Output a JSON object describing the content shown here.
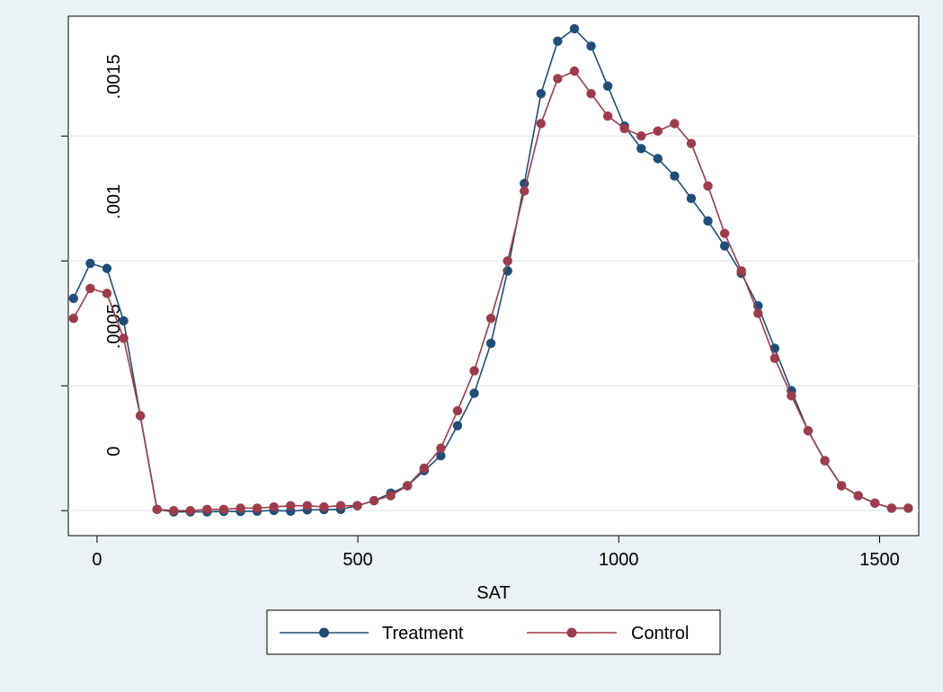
{
  "chart_data": {
    "type": "line",
    "title": "",
    "xlabel": "SAT",
    "ylabel": "",
    "xlim": [
      -55,
      1575
    ],
    "ylim": [
      -0.0001,
      0.00198
    ],
    "xticks": [
      0,
      500,
      1000,
      1500
    ],
    "yticks": [
      0,
      0.0005,
      0.001,
      0.0015
    ],
    "xtick_labels": [
      "0",
      "500",
      "1000",
      "1500"
    ],
    "ytick_labels": [
      "0",
      ".0005",
      ".001",
      ".0015"
    ],
    "grid": true,
    "legend": "bottom",
    "series": [
      {
        "name": "Treatment",
        "color": "#1f4e79",
        "x": [
          -45,
          -13,
          19,
          51,
          83,
          115,
          147,
          179,
          211,
          243,
          275,
          307,
          339,
          371,
          403,
          435,
          467,
          499,
          531,
          563,
          595,
          627,
          659,
          691,
          723,
          755,
          787,
          819,
          851,
          883,
          915,
          947,
          979,
          1011,
          1043,
          1075,
          1107,
          1139,
          1171,
          1203,
          1235,
          1267,
          1299,
          1331,
          1363,
          1395,
          1427,
          1459,
          1491,
          1523,
          1555
        ],
        "y": [
          0.00085,
          0.00099,
          0.00097,
          0.00076,
          0.00038,
          5e-06,
          -5e-06,
          -5e-06,
          -5e-06,
          -3e-06,
          -3e-06,
          -2e-06,
          1e-06,
          -2e-06,
          3e-06,
          4e-06,
          5e-06,
          2e-05,
          4e-05,
          7e-05,
          0.0001,
          0.00016,
          0.00022,
          0.00034,
          0.00047,
          0.00067,
          0.00096,
          0.00131,
          0.00167,
          0.00188,
          0.00193,
          0.00186,
          0.0017,
          0.00154,
          0.00145,
          0.00141,
          0.00134,
          0.00125,
          0.00116,
          0.00106,
          0.00095,
          0.00082,
          0.00065,
          0.00048,
          0.00032,
          0.0002,
          0.0001,
          6e-05,
          3e-05,
          1e-05,
          1e-05
        ]
      },
      {
        "name": "Control",
        "color": "#9e3c4b",
        "x": [
          -45,
          -13,
          19,
          51,
          83,
          115,
          147,
          179,
          211,
          243,
          275,
          307,
          339,
          371,
          403,
          435,
          467,
          499,
          531,
          563,
          595,
          627,
          659,
          691,
          723,
          755,
          787,
          819,
          851,
          883,
          915,
          947,
          979,
          1011,
          1043,
          1075,
          1107,
          1139,
          1171,
          1203,
          1235,
          1267,
          1299,
          1331,
          1363,
          1395,
          1427,
          1459,
          1491,
          1523,
          1555
        ],
        "y": [
          0.00077,
          0.00089,
          0.00087,
          0.00069,
          0.00038,
          5e-06,
          0.0,
          0.0,
          5e-06,
          5e-06,
          1e-05,
          1e-05,
          1.5e-05,
          2e-05,
          2e-05,
          1.5e-05,
          2e-05,
          2e-05,
          4e-05,
          6e-05,
          0.0001,
          0.00017,
          0.00025,
          0.0004,
          0.00056,
          0.00077,
          0.001,
          0.00128,
          0.00155,
          0.00173,
          0.00176,
          0.00167,
          0.00158,
          0.00153,
          0.0015,
          0.00152,
          0.00155,
          0.00147,
          0.0013,
          0.00111,
          0.00096,
          0.00079,
          0.00061,
          0.00046,
          0.00032,
          0.0002,
          0.0001,
          6e-05,
          3e-05,
          1e-05,
          1e-05
        ]
      }
    ]
  }
}
